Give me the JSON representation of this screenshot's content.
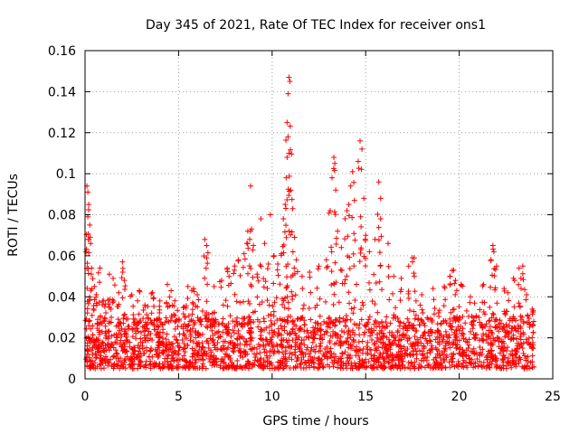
{
  "chart_data": {
    "type": "scatter",
    "title": "Day 345 of 2021, Rate Of TEC Index for receiver ons1",
    "xlabel": "GPS time / hours",
    "ylabel": "ROTI / TECUs",
    "xlim": [
      0,
      25
    ],
    "ylim": [
      0,
      0.16
    ],
    "xticks": [
      0,
      5,
      10,
      15,
      20,
      25
    ],
    "yticks": [
      0,
      0.02,
      0.04,
      0.06,
      0.08,
      0.1,
      0.12,
      0.14,
      0.16
    ],
    "xtick_labels": [
      "0",
      "5",
      "10",
      "15",
      "20",
      "25"
    ],
    "ytick_labels": [
      "0",
      "0.02",
      "0.04",
      "0.06",
      "0.08",
      "0.1",
      "0.12",
      "0.14",
      "0.16"
    ],
    "grid": true,
    "marker": "+",
    "color": "#ff0000",
    "series": [
      {
        "name": "",
        "points": [
          [
            0.1,
            0.094
          ],
          [
            0.15,
            0.091
          ],
          [
            0.2,
            0.085
          ],
          [
            0.15,
            0.079
          ],
          [
            0.25,
            0.075
          ],
          [
            0.2,
            0.068
          ],
          [
            0.3,
            0.066
          ],
          [
            0.35,
            0.054
          ],
          [
            0.5,
            0.045
          ],
          [
            0.8,
            0.054
          ],
          [
            1.3,
            0.051
          ],
          [
            1.5,
            0.049
          ],
          [
            2.0,
            0.057
          ],
          [
            2.1,
            0.048
          ],
          [
            0.6,
            0.041
          ],
          [
            1.0,
            0.038
          ],
          [
            1.8,
            0.042
          ],
          [
            2.5,
            0.041
          ],
          [
            2.9,
            0.043
          ],
          [
            3.2,
            0.036
          ],
          [
            3.6,
            0.042
          ],
          [
            4.0,
            0.038
          ],
          [
            4.4,
            0.046
          ],
          [
            4.6,
            0.043
          ],
          [
            4.8,
            0.038
          ],
          [
            5.3,
            0.035
          ],
          [
            5.5,
            0.045
          ],
          [
            5.8,
            0.044
          ],
          [
            6.0,
            0.041
          ],
          [
            6.4,
            0.068
          ],
          [
            6.5,
            0.065
          ],
          [
            6.5,
            0.059
          ],
          [
            6.9,
            0.045
          ],
          [
            7.3,
            0.048
          ],
          [
            7.6,
            0.054
          ],
          [
            7.7,
            0.05
          ],
          [
            8.0,
            0.055
          ],
          [
            8.2,
            0.058
          ],
          [
            8.5,
            0.061
          ],
          [
            8.7,
            0.072
          ],
          [
            8.8,
            0.068
          ],
          [
            8.9,
            0.073
          ],
          [
            8.85,
            0.094
          ],
          [
            9.0,
            0.065
          ],
          [
            9.2,
            0.051
          ],
          [
            9.4,
            0.078
          ],
          [
            9.6,
            0.066
          ],
          [
            9.8,
            0.056
          ],
          [
            9.9,
            0.08
          ],
          [
            10.1,
            0.06
          ],
          [
            10.3,
            0.056
          ],
          [
            10.5,
            0.061
          ],
          [
            10.6,
            0.078
          ],
          [
            10.7,
            0.085
          ],
          [
            10.75,
            0.098
          ],
          [
            10.8,
            0.108
          ],
          [
            10.8,
            0.125
          ],
          [
            10.85,
            0.139
          ],
          [
            10.9,
            0.147
          ],
          [
            10.95,
            0.145
          ],
          [
            10.85,
            0.118
          ],
          [
            10.9,
            0.11
          ],
          [
            11.0,
            0.092
          ],
          [
            11.1,
            0.083
          ],
          [
            11.2,
            0.069
          ],
          [
            11.3,
            0.058
          ],
          [
            11.6,
            0.05
          ],
          [
            12.0,
            0.052
          ],
          [
            12.5,
            0.055
          ],
          [
            12.9,
            0.058
          ],
          [
            13.1,
            0.082
          ],
          [
            13.2,
            0.098
          ],
          [
            13.3,
            0.108
          ],
          [
            13.35,
            0.105
          ],
          [
            13.4,
            0.092
          ],
          [
            13.5,
            0.072
          ],
          [
            13.7,
            0.064
          ],
          [
            13.9,
            0.078
          ],
          [
            14.0,
            0.082
          ],
          [
            14.1,
            0.085
          ],
          [
            14.2,
            0.094
          ],
          [
            14.3,
            0.101
          ],
          [
            14.4,
            0.087
          ],
          [
            14.6,
            0.106
          ],
          [
            14.7,
            0.116
          ],
          [
            14.8,
            0.112
          ],
          [
            14.9,
            0.088
          ],
          [
            15.0,
            0.07
          ],
          [
            15.2,
            0.062
          ],
          [
            15.5,
            0.068
          ],
          [
            15.7,
            0.096
          ],
          [
            15.8,
            0.088
          ],
          [
            15.8,
            0.078
          ],
          [
            16.2,
            0.066
          ],
          [
            16.5,
            0.05
          ],
          [
            16.9,
            0.049
          ],
          [
            17.3,
            0.055
          ],
          [
            17.5,
            0.059
          ],
          [
            17.6,
            0.05
          ],
          [
            18.0,
            0.041
          ],
          [
            18.6,
            0.044
          ],
          [
            19.2,
            0.045
          ],
          [
            19.5,
            0.05
          ],
          [
            19.7,
            0.053
          ],
          [
            19.8,
            0.048
          ],
          [
            20.1,
            0.046
          ],
          [
            20.6,
            0.04
          ],
          [
            21.3,
            0.046
          ],
          [
            21.7,
            0.058
          ],
          [
            21.8,
            0.065
          ],
          [
            21.85,
            0.062
          ],
          [
            22.0,
            0.055
          ],
          [
            22.4,
            0.044
          ],
          [
            22.6,
            0.042
          ],
          [
            22.9,
            0.049
          ],
          [
            23.2,
            0.054
          ],
          [
            23.4,
            0.055
          ],
          [
            23.3,
            0.049
          ],
          [
            23.6,
            0.041
          ],
          [
            23.9,
            0.034
          ]
        ]
      }
    ],
    "band": {
      "x_start": 0,
      "x_end": 24,
      "base_min": 0.005,
      "base_max": 0.03
    }
  }
}
